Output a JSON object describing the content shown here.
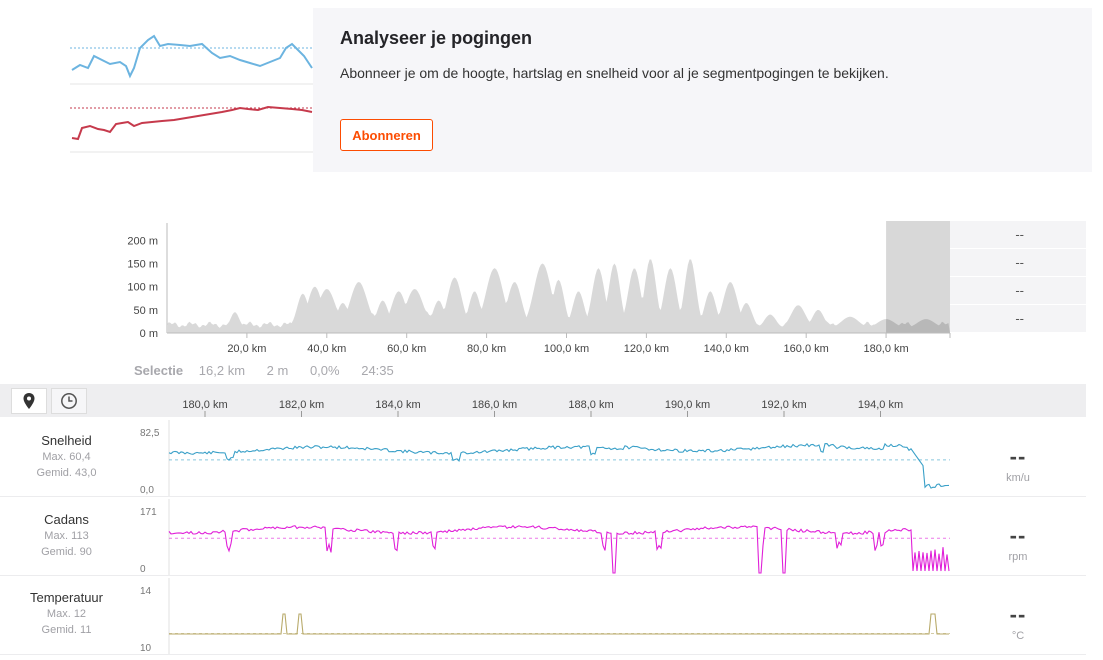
{
  "promo": {
    "title": "Analyseer je pogingen",
    "text": "Abonneer je om de hoogte, hartslag en snelheid voor al je segmentpogingen te bekijken.",
    "button": "Abonneren",
    "colors": {
      "blue": "#6cb4e0",
      "red": "#c63a4c",
      "accent": "#fc4c02"
    }
  },
  "elevation": {
    "y_labels": [
      "200 m",
      "150 m",
      "100 m",
      "50 m",
      "0 m"
    ],
    "x_labels": [
      "20,0 km",
      "40,0 km",
      "60,0 km",
      "80,0 km",
      "100,0 km",
      "120,0 km",
      "140,0 km",
      "160,0 km",
      "180,0 km"
    ],
    "side_values": [
      "--",
      "--",
      "--",
      "--"
    ],
    "fill_color": "#d9d9d9",
    "selection_color": "#b8b8b8",
    "x_range_km": [
      0,
      196
    ],
    "y_range_m": [
      0,
      220
    ],
    "selection_km": [
      180,
      196
    ]
  },
  "selection": {
    "label": "Selectie",
    "distance": "16,2 km",
    "time": "2 m",
    "grade": "0,0%",
    "duration": "24:35"
  },
  "toolbar": {
    "map_icon": "map-pin-icon",
    "time_icon": "clock-icon",
    "axis_labels": [
      "180,0 km",
      "182,0 km",
      "184,0 km",
      "186,0 km",
      "188,0 km",
      "190,0 km",
      "192,0 km",
      "194,0 km"
    ]
  },
  "streams": [
    {
      "name": "Snelheid",
      "max": "Max. 60,4",
      "avg": "Gemid. 43,0",
      "value": "--",
      "unit": "km/u",
      "y_max": "82,5",
      "y_min": "0,0",
      "color": "#3aa0c8",
      "avg_fraction": 0.52
    },
    {
      "name": "Cadans",
      "max": "Max. 113",
      "avg": "Gemid. 90",
      "value": "--",
      "unit": "rpm",
      "y_max": "171",
      "y_min": "0",
      "color": "#e020d8",
      "avg_fraction": 0.53
    },
    {
      "name": "Temperatuur",
      "max": "Max. 12",
      "avg": "Gemid. 11",
      "value": "--",
      "unit": "°C",
      "y_max": "14",
      "y_min": "10",
      "color": "#b8aa6a",
      "avg_fraction": 0.25
    }
  ]
}
